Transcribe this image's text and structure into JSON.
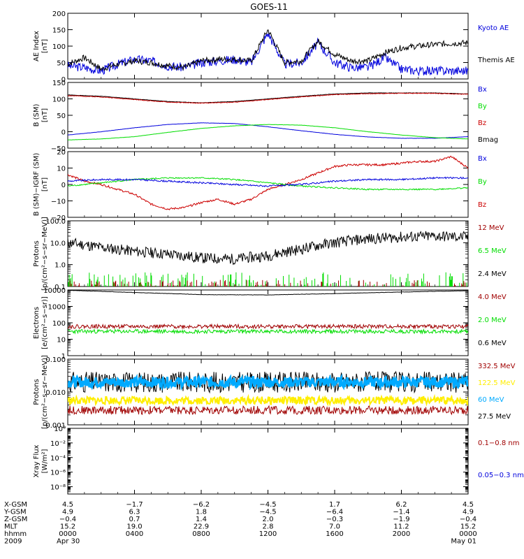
{
  "title": "GOES-11",
  "colors": {
    "black": "#000000",
    "blue": "#0000dd",
    "red": "#cc0000",
    "darkred": "#a00000",
    "green": "#00dd00",
    "cyan": "#00aaff",
    "yellow": "#ffee00"
  },
  "chart_data": [
    {
      "id": "ae",
      "type": "line",
      "ylabel": [
        "AE Index",
        "[nT]"
      ],
      "scale": "linear",
      "ylim": [
        0,
        200
      ],
      "yticks": [
        0,
        50,
        100,
        150,
        200
      ],
      "yticklabels": [
        "0",
        "50",
        "100",
        "150",
        "200"
      ],
      "legend": [
        {
          "name": "Kyoto AE",
          "color": "blue"
        },
        {
          "name": "Themis AE",
          "color": "black"
        }
      ],
      "series": [
        {
          "name": "Kyoto AE",
          "color": "blue",
          "x": [
            0,
            1,
            2,
            3,
            4,
            5,
            6,
            7,
            8,
            9,
            10,
            11,
            12,
            13,
            14,
            15,
            16,
            17,
            18,
            19,
            20,
            21,
            22,
            23,
            24
          ],
          "y": [
            40,
            35,
            25,
            45,
            60,
            55,
            40,
            35,
            50,
            55,
            60,
            50,
            140,
            45,
            50,
            110,
            50,
            35,
            35,
            65,
            30,
            25,
            25,
            25,
            25
          ],
          "noise": 14,
          "seed": 3
        },
        {
          "name": "Themis AE",
          "color": "black",
          "x": [
            0,
            1,
            2,
            3,
            4,
            5,
            6,
            7,
            8,
            9,
            10,
            11,
            12,
            13,
            14,
            15,
            16,
            17,
            18,
            19,
            20,
            21,
            22,
            23,
            24
          ],
          "y": [
            45,
            65,
            30,
            45,
            55,
            50,
            40,
            35,
            55,
            60,
            60,
            55,
            150,
            50,
            55,
            115,
            75,
            55,
            55,
            80,
            95,
            100,
            105,
            108,
            110
          ],
          "noise": 9,
          "seed": 7
        }
      ]
    },
    {
      "id": "bsm",
      "type": "line",
      "ylabel": [
        "B (SM)",
        "[nT]"
      ],
      "scale": "linear",
      "ylim": [
        -50,
        150
      ],
      "yticks": [
        -50,
        0,
        50,
        100,
        150
      ],
      "yticklabels": [
        "−50",
        "0",
        "50",
        "100",
        "150"
      ],
      "legend": [
        {
          "name": "Bx",
          "color": "blue"
        },
        {
          "name": "By",
          "color": "green"
        },
        {
          "name": "Bz",
          "color": "red"
        },
        {
          "name": "Bmag",
          "color": "black"
        }
      ],
      "series": [
        {
          "name": "Bmag",
          "color": "black",
          "x": [
            0,
            2,
            4,
            6,
            8,
            10,
            12,
            14,
            16,
            18,
            20,
            22,
            24
          ],
          "y": [
            112,
            108,
            100,
            92,
            88,
            92,
            100,
            108,
            115,
            118,
            118,
            118,
            115
          ],
          "noise": 0.5,
          "seed": 1
        },
        {
          "name": "Bz",
          "color": "red",
          "x": [
            0,
            2,
            4,
            6,
            8,
            10,
            12,
            14,
            16,
            18,
            20,
            22,
            24
          ],
          "y": [
            110,
            106,
            98,
            90,
            87,
            90,
            98,
            106,
            113,
            116,
            117,
            117,
            114
          ],
          "noise": 1,
          "seed": 2
        },
        {
          "name": "Bx",
          "color": "blue",
          "x": [
            0,
            2,
            4,
            6,
            8,
            10,
            12,
            14,
            16,
            18,
            20,
            22,
            24
          ],
          "y": [
            -10,
            0,
            12,
            22,
            27,
            25,
            15,
            3,
            -8,
            -16,
            -20,
            -20,
            -15
          ],
          "noise": 0.3,
          "seed": 4
        },
        {
          "name": "By",
          "color": "green",
          "x": [
            0,
            2,
            4,
            6,
            8,
            10,
            12,
            14,
            16,
            18,
            20,
            22,
            24
          ],
          "y": [
            -25,
            -22,
            -15,
            -2,
            10,
            18,
            22,
            20,
            12,
            0,
            -10,
            -18,
            -22
          ],
          "noise": 0.3,
          "seed": 5
        }
      ]
    },
    {
      "id": "bdiff",
      "type": "line",
      "ylabel": [
        "B (SM)−IGRF (SM)",
        "[nT]"
      ],
      "scale": "linear",
      "ylim": [
        -20,
        20
      ],
      "yticks": [
        -20,
        -10,
        0,
        10,
        20
      ],
      "yticklabels": [
        "−20",
        "−10",
        "0",
        "10",
        "20"
      ],
      "legend": [
        {
          "name": "Bx",
          "color": "blue"
        },
        {
          "name": "By",
          "color": "green"
        },
        {
          "name": "Bz",
          "color": "red"
        }
      ],
      "series": [
        {
          "name": "Bz",
          "color": "red",
          "x": [
            0,
            1,
            2,
            3,
            4,
            5,
            6,
            7,
            8,
            9,
            10,
            11,
            12,
            13,
            14,
            15,
            16,
            17,
            18,
            19,
            20,
            21,
            22,
            23,
            24
          ],
          "y": [
            6,
            2,
            0,
            -3,
            -6,
            -12,
            -15,
            -14,
            -11,
            -9,
            -12,
            -9,
            -3,
            0,
            3,
            7,
            11,
            12,
            12,
            12,
            13,
            14,
            14,
            17,
            10
          ],
          "noise": 0.6,
          "seed": 6
        },
        {
          "name": "By",
          "color": "green",
          "x": [
            0,
            2,
            4,
            6,
            8,
            10,
            12,
            14,
            16,
            18,
            20,
            22,
            24
          ],
          "y": [
            -1,
            1,
            3,
            4,
            4,
            3,
            1,
            -1,
            -2,
            -3,
            -3,
            -3,
            -2
          ],
          "noise": 0.4,
          "seed": 8
        },
        {
          "name": "Bx",
          "color": "blue",
          "x": [
            0,
            2,
            4,
            6,
            8,
            10,
            12,
            14,
            16,
            18,
            20,
            22,
            24
          ],
          "y": [
            2,
            3,
            3,
            2,
            1,
            0,
            -1,
            0,
            2,
            3,
            3,
            4,
            4
          ],
          "noise": 0.5,
          "seed": 9
        }
      ]
    },
    {
      "id": "protons_low",
      "type": "line",
      "ylabel": [
        "Protons",
        "[p/(cm²−s−sr−MeV)]"
      ],
      "scale": "log",
      "ylim": [
        0.1,
        100
      ],
      "yticks": [
        0.1,
        1,
        10,
        100
      ],
      "yticklabels": [
        "0.1",
        "1.0",
        "10.0",
        "100.0"
      ],
      "legend": [
        {
          "name": "12 MeV",
          "color": "darkred"
        },
        {
          "name": "6.5 MeV",
          "color": "green"
        },
        {
          "name": "2.4 MeV",
          "color": "black"
        }
      ],
      "series": [
        {
          "name": "2.4 MeV",
          "color": "black",
          "x": [
            0,
            2,
            4,
            6,
            8,
            10,
            12,
            14,
            16,
            18,
            20,
            22,
            24
          ],
          "y": [
            10,
            6,
            4,
            3,
            2,
            1.8,
            2.5,
            5,
            10,
            15,
            18,
            20,
            18
          ],
          "noise": 0.25,
          "seed": 11,
          "log": true
        },
        {
          "name": "6.5 MeV",
          "color": "green",
          "x": [
            0,
            24
          ],
          "y": [
            0.12,
            0.12
          ],
          "spikes": true,
          "spikemax": 0.45,
          "density": 0.22,
          "seed": 12
        },
        {
          "name": "12 MeV",
          "color": "darkred",
          "x": [
            0,
            24
          ],
          "y": [
            0.1,
            0.1
          ],
          "spikes": true,
          "spikemax": 0.2,
          "density": 0.18,
          "seed": 13
        }
      ]
    },
    {
      "id": "electrons",
      "type": "line",
      "ylabel": [
        "Electrons",
        "[e/(cm²−s−sr)]"
      ],
      "scale": "log",
      "ylim": [
        1,
        10000
      ],
      "yticks": [
        1,
        10,
        100,
        1000,
        10000
      ],
      "yticklabels": [
        "1",
        "10",
        "100",
        "1000",
        "10000"
      ],
      "legend": [
        {
          "name": "4.0 MeV",
          "color": "darkred"
        },
        {
          "name": "2.0 MeV",
          "color": "green"
        },
        {
          "name": "0.6 MeV",
          "color": "black"
        }
      ],
      "series": [
        {
          "name": "0.6 MeV",
          "color": "black",
          "x": [
            0,
            4,
            8,
            12,
            16,
            20,
            24
          ],
          "y": [
            9500,
            7000,
            5200,
            5000,
            6000,
            7500,
            9000
          ],
          "noise": 0.01,
          "seed": 21,
          "log": true
        },
        {
          "name": "4.0 MeV",
          "color": "darkred",
          "x": [
            0,
            24
          ],
          "y": [
            60,
            60
          ],
          "noise": 0.12,
          "seed": 22,
          "log": true
        },
        {
          "name": "2.0 MeV",
          "color": "green",
          "x": [
            0,
            24
          ],
          "y": [
            30,
            30
          ],
          "noise": 0.12,
          "seed": 23,
          "log": true
        }
      ]
    },
    {
      "id": "protons_high",
      "type": "line",
      "ylabel": [
        "Protons",
        "[p/(cm²−s−sr−MeV)]"
      ],
      "scale": "log",
      "ylim": [
        0.001,
        0.1
      ],
      "yticks": [
        0.001,
        0.01,
        0.1
      ],
      "yticklabels": [
        "0.001",
        "0.010",
        "0.100"
      ],
      "legend": [
        {
          "name": "332.5 MeV",
          "color": "darkred"
        },
        {
          "name": "122.5 MeV",
          "color": "yellow"
        },
        {
          "name": "60 MeV",
          "color": "cyan"
        },
        {
          "name": "27.5 MeV",
          "color": "black"
        }
      ],
      "series": [
        {
          "name": "27.5 MeV",
          "color": "black",
          "x": [
            0,
            24
          ],
          "y": [
            0.02,
            0.02
          ],
          "noise": 0.32,
          "seed": 31,
          "log": true
        },
        {
          "name": "60 MeV",
          "color": "cyan",
          "x": [
            0,
            24
          ],
          "y": [
            0.02,
            0.02
          ],
          "noise": 0.16,
          "seed": 32,
          "log": true,
          "width": 3
        },
        {
          "name": "122.5 MeV",
          "color": "yellow",
          "x": [
            0,
            24
          ],
          "y": [
            0.0055,
            0.0055
          ],
          "noise": 0.12,
          "seed": 33,
          "log": true,
          "width": 2
        },
        {
          "name": "332.5 MeV",
          "color": "darkred",
          "x": [
            0,
            24
          ],
          "y": [
            0.0028,
            0.0028
          ],
          "noise": 0.13,
          "seed": 34,
          "log": true
        }
      ]
    },
    {
      "id": "xray",
      "type": "line",
      "ylabel": [
        "Xray Flux",
        "[W/m²]"
      ],
      "scale": "log",
      "ylim": [
        1e-09,
        1
      ],
      "yticks": [
        1e-08,
        1e-06,
        0.0001,
        0.01,
        1
      ],
      "yticklabels": [
        "10⁻⁸",
        "10⁻⁶",
        "10⁻⁴",
        "10⁻²",
        "10⁰"
      ],
      "legend": [
        {
          "name": "0.1−0.8 nm",
          "color": "darkred"
        },
        {
          "name": "0.05−0.3 nm",
          "color": "blue"
        }
      ],
      "series": []
    }
  ],
  "xaxis": {
    "range": [
      0,
      24
    ],
    "ticks": [
      0,
      4,
      8,
      12,
      16,
      20,
      24
    ],
    "rows": [
      {
        "label": "X-GSM",
        "values": [
          "4.5",
          "−1.7",
          "−6.2",
          "−4.5",
          "1.7",
          "6.2",
          "4.5"
        ]
      },
      {
        "label": "Y-GSM",
        "values": [
          "4.9",
          "6.3",
          "1.8",
          "−4.5",
          "−6.4",
          "−1.4",
          "4.9"
        ]
      },
      {
        "label": "Z-GSM",
        "values": [
          "−0.4",
          "0.7",
          "1.4",
          "2.0",
          "−0.3",
          "−1.9",
          "−0.4"
        ]
      },
      {
        "label": "MLT",
        "values": [
          "15.2",
          "19.0",
          "22.9",
          "2.8",
          "7.0",
          "11.2",
          "15.2"
        ]
      },
      {
        "label": "hhmm",
        "values": [
          "0000",
          "0400",
          "0800",
          "1200",
          "1600",
          "2000",
          "0000"
        ]
      },
      {
        "label": "2009",
        "values": [
          "Apr 30",
          "",
          "",
          "",
          "",
          "",
          "May 01"
        ]
      }
    ]
  }
}
